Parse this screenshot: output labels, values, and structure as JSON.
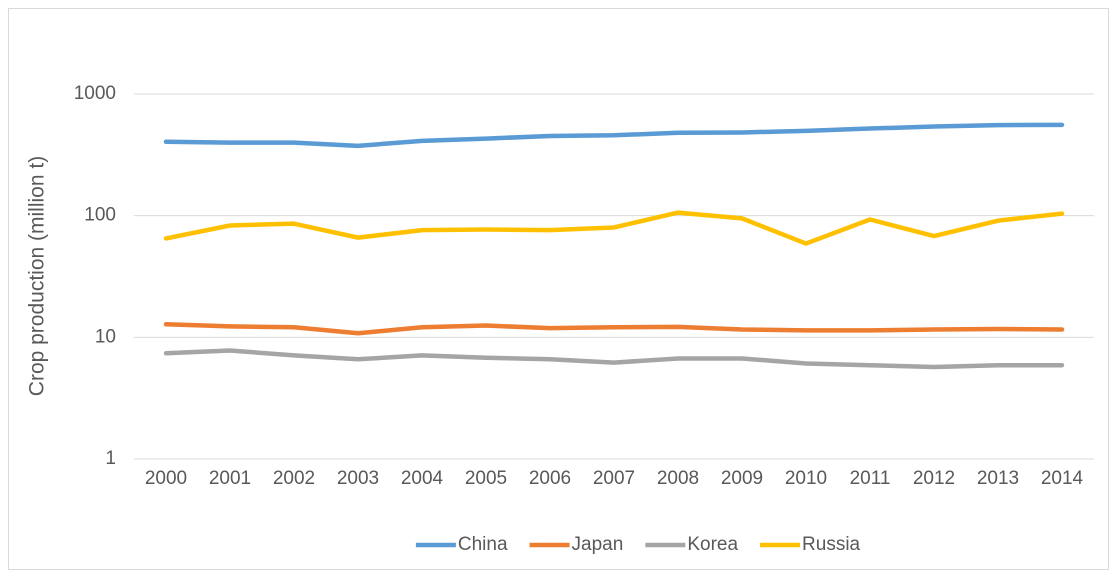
{
  "chart_data": {
    "type": "line",
    "y_label": "Crop production (million t)",
    "categories": [
      "2000",
      "2001",
      "2002",
      "2003",
      "2004",
      "2005",
      "2006",
      "2007",
      "2008",
      "2009",
      "2010",
      "2011",
      "2012",
      "2013",
      "2014"
    ],
    "series": [
      {
        "name": "China",
        "color": "#5b9bd5",
        "values": [
          405,
          398,
          398,
          375,
          412,
          430,
          452,
          458,
          480,
          483,
          498,
          520,
          540,
          555,
          558
        ]
      },
      {
        "name": "Japan",
        "color": "#ed7d31",
        "values": [
          12.8,
          12.3,
          12.1,
          10.8,
          12.1,
          12.5,
          11.9,
          12.1,
          12.2,
          11.6,
          11.4,
          11.4,
          11.6,
          11.7,
          11.6
        ]
      },
      {
        "name": "Korea",
        "color": "#a5a5a5",
        "values": [
          7.4,
          7.8,
          7.1,
          6.6,
          7.1,
          6.8,
          6.6,
          6.2,
          6.7,
          6.7,
          6.1,
          5.9,
          5.7,
          5.9,
          5.9
        ]
      },
      {
        "name": "Russia",
        "color": "#ffc000",
        "values": [
          65,
          83,
          86,
          66,
          76,
          77,
          76,
          80,
          106,
          95,
          59,
          93,
          68,
          91,
          104
        ]
      }
    ],
    "ylim": [
      1,
      1000
    ],
    "yticks": [
      1,
      10,
      100,
      1000
    ],
    "log_scale": true,
    "grid": true,
    "legend": "bottom"
  }
}
